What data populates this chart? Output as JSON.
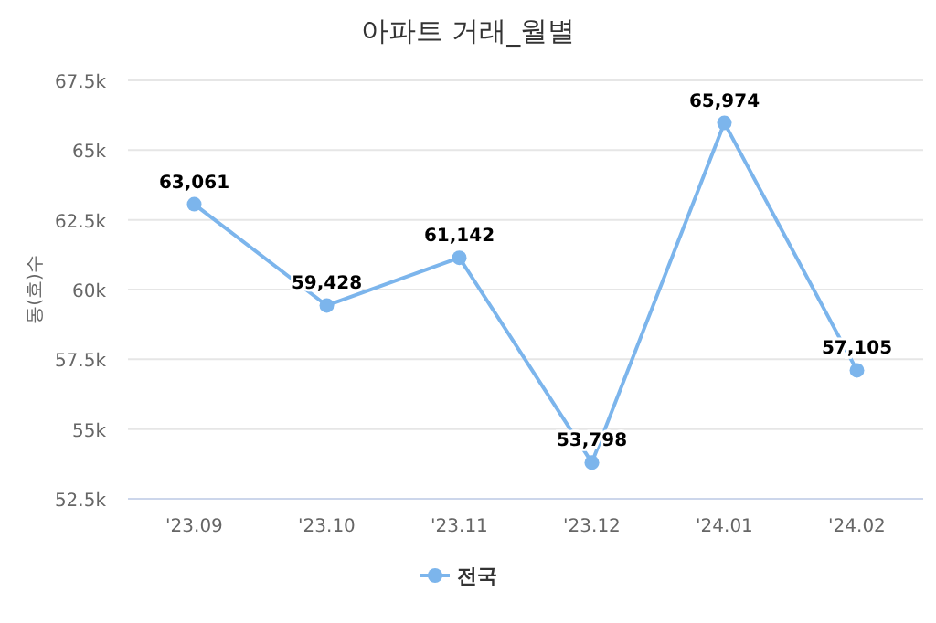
{
  "chart_data": {
    "type": "line",
    "title": "아파트 거래_월별",
    "ylabel": "동(호)수",
    "categories": [
      "'23.09",
      "'23.10",
      "'23.11",
      "'23.12",
      "'24.01",
      "'24.02"
    ],
    "series": [
      {
        "name": "전국",
        "color": "#7cb5ec",
        "values": [
          63061,
          59428,
          61142,
          53798,
          65974,
          57105
        ],
        "value_labels": [
          "63,061",
          "59,428",
          "61,142",
          "53,798",
          "65,974",
          "57,105"
        ]
      }
    ],
    "ylim": [
      52500,
      67500
    ],
    "yticks": [
      {
        "value": 52500,
        "label": "52.5k"
      },
      {
        "value": 55000,
        "label": "55k"
      },
      {
        "value": 57500,
        "label": "57.5k"
      },
      {
        "value": 60000,
        "label": "60k"
      },
      {
        "value": 62500,
        "label": "62.5k"
      },
      {
        "value": 65000,
        "label": "65k"
      },
      {
        "value": 67500,
        "label": "67.5k"
      }
    ],
    "grid": "y",
    "legend": "bottom",
    "marker": "circle",
    "line_style": "solid"
  }
}
